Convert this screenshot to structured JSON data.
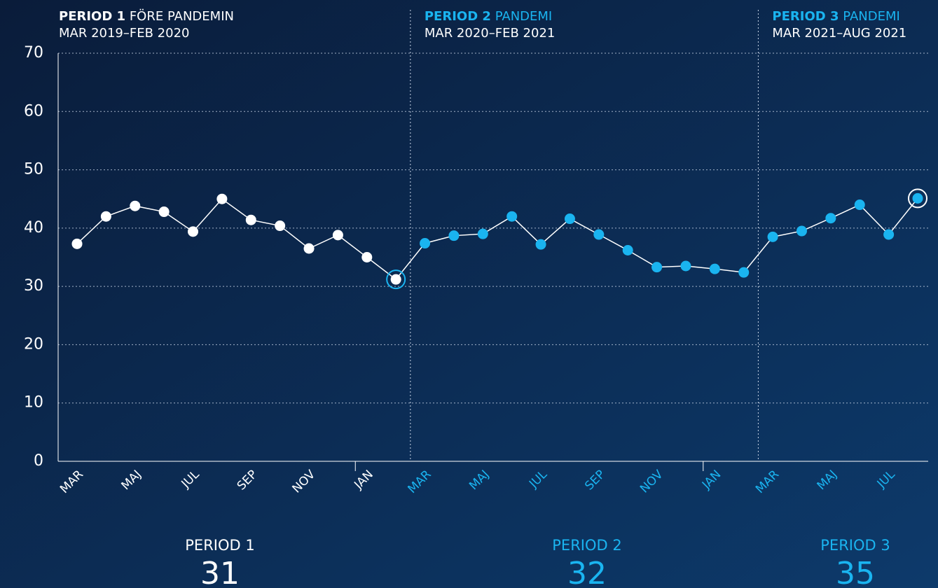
{
  "chart_data": {
    "type": "line",
    "categories": [
      "MAR",
      null,
      "MAJ",
      null,
      "JUL",
      null,
      "SEP",
      null,
      "NOV",
      null,
      "JAN",
      null,
      "MAR",
      null,
      "MAJ",
      null,
      "JUL",
      null,
      "SEP",
      null,
      "NOV",
      null,
      "JAN",
      null,
      "MAR",
      null,
      "MAJ",
      null,
      "JUL",
      null
    ],
    "line_color": "#ffffff",
    "series": [
      {
        "name": "PERIOD 1",
        "subtitle": "FÖRE PANDEMIN",
        "range": "MAR 2019–FEB 2020",
        "color": "#ffffff",
        "summary": 31,
        "values": [
          37.3,
          42,
          43.8,
          42.8,
          39.4,
          45,
          41.4,
          40.4,
          36.5,
          38.8,
          35,
          31.2,
          null,
          null,
          null,
          null,
          null,
          null,
          null,
          null,
          null,
          null,
          null,
          null,
          null,
          null,
          null,
          null,
          null,
          null
        ]
      },
      {
        "name": "PERIOD 2",
        "subtitle": "PANDEMI",
        "range": "MAR 2020–FEB 2021",
        "color": "#1ab4f0",
        "summary": 32,
        "values": [
          null,
          null,
          null,
          null,
          null,
          null,
          null,
          null,
          null,
          null,
          null,
          null,
          37.4,
          38.7,
          39,
          42,
          37.2,
          41.6,
          38.9,
          36.2,
          33.3,
          33.5,
          33,
          32.4,
          null,
          null,
          null,
          null,
          null,
          null
        ]
      },
      {
        "name": "PERIOD 3",
        "subtitle": "PANDEMI",
        "range": "MAR 2021–AUG 2021",
        "color": "#1ab4f0",
        "summary": 35,
        "values": [
          null,
          null,
          null,
          null,
          null,
          null,
          null,
          null,
          null,
          null,
          null,
          null,
          null,
          null,
          null,
          null,
          null,
          null,
          null,
          null,
          null,
          null,
          null,
          null,
          38.5,
          39.5,
          41.7,
          44,
          38.9,
          45.1
        ]
      }
    ],
    "highlighted": [
      11,
      29
    ],
    "ylim": [
      0,
      70
    ],
    "yticks": [
      0,
      10,
      20,
      30,
      40,
      50,
      60,
      70
    ],
    "grid": true
  }
}
